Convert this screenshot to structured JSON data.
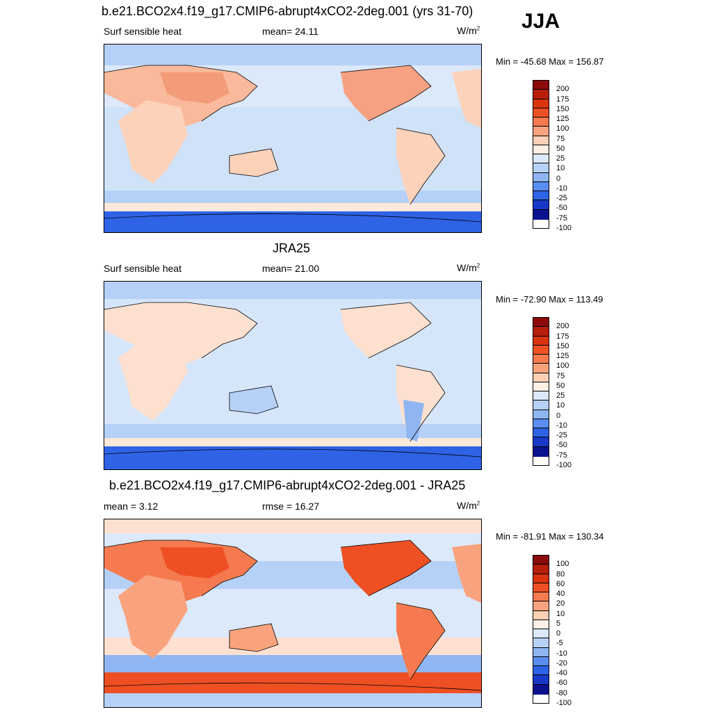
{
  "season": "JJA",
  "panels": [
    {
      "title": "b.e21.BCO2x4.f19_g17.CMIP6-abrupt4xCO2-2deg.001 (yrs 31-70)",
      "left": "Surf sensible heat",
      "center": "mean=  24.11",
      "units": "W/m",
      "units_sup": "2",
      "minmax": "Min = -45.68 Max = 156.87",
      "colorbar_labels": [
        "200",
        "175",
        "150",
        "125",
        "100",
        "75",
        "50",
        "25",
        "10",
        "0",
        "-10",
        "-25",
        "-50",
        "-75",
        "-100"
      ]
    },
    {
      "title": "JRA25",
      "left": "Surf sensible heat",
      "center": "mean=  21.00",
      "units": "W/m",
      "units_sup": "2",
      "minmax": "Min = -72.90 Max = 113.49",
      "colorbar_labels": [
        "200",
        "175",
        "150",
        "125",
        "100",
        "75",
        "50",
        "25",
        "10",
        "0",
        "-10",
        "-25",
        "-50",
        "-75",
        "-100"
      ]
    },
    {
      "title": "b.e21.BCO2x4.f19_g17.CMIP6-abrupt4xCO2-2deg.001 - JRA25",
      "left": "mean =   3.12",
      "center": "rmse =  16.27",
      "units": "W/m",
      "units_sup": "2",
      "minmax": "Min = -81.91 Max = 130.34",
      "colorbar_labels": [
        "100",
        "80",
        "60",
        "40",
        "20",
        "10",
        "5",
        "0",
        "-5",
        "-10",
        "-20",
        "-40",
        "-60",
        "-80",
        "-100"
      ]
    }
  ],
  "colors": {
    "palette": [
      "#8b0a0a",
      "#b61e0a",
      "#d9330f",
      "#ee5024",
      "#f57a4f",
      "#f9a37e",
      "#fdd0b5",
      "#fff0e6",
      "#dce9fa",
      "#b6d1f7",
      "#8fb6f2",
      "#5a8ef0",
      "#2e63e6",
      "#1838c8",
      "#0a1290"
    ],
    "ocean_light": "#d6e6fa",
    "land_warm": "#fbd5be"
  }
}
